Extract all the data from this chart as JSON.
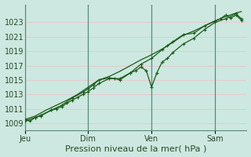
{
  "background_color": "#cce8e0",
  "plot_bg_color": "#cce8e0",
  "grid_color": "#e8c8c8",
  "vline_color": "#5a8a7a",
  "line_color": "#1a5c1a",
  "xlabel": "Pression niveau de la mer( hPa )",
  "yticks": [
    1009,
    1011,
    1013,
    1015,
    1017,
    1019,
    1021,
    1023
  ],
  "ylim": [
    1008.0,
    1025.5
  ],
  "xtick_labels": [
    "Jeu",
    "Dim",
    "Ven",
    "Sam"
  ],
  "xtick_positions": [
    0,
    12,
    24,
    36
  ],
  "xlim": [
    0,
    42
  ],
  "series1_x": [
    0,
    1,
    2,
    3,
    5,
    6,
    7,
    8,
    9,
    10,
    11,
    12,
    13,
    14,
    16,
    18,
    20,
    22,
    24,
    26,
    27,
    28,
    30,
    32,
    34,
    36,
    37,
    38,
    39,
    40,
    41
  ],
  "series1_y": [
    1009.5,
    1009.3,
    1009.8,
    1010.0,
    1010.8,
    1011.0,
    1011.3,
    1011.8,
    1012.2,
    1012.6,
    1013.0,
    1013.4,
    1013.9,
    1014.5,
    1015.2,
    1015.2,
    1016.0,
    1017.2,
    1018.0,
    1019.2,
    1019.8,
    1020.3,
    1021.3,
    1021.5,
    1022.5,
    1023.2,
    1023.5,
    1024.0,
    1023.6,
    1024.0,
    1023.3
  ],
  "series2_x": [
    0,
    2,
    3,
    5,
    7,
    9,
    11,
    12,
    13,
    14,
    16,
    17,
    18,
    20,
    21,
    22,
    23,
    24,
    25,
    26,
    27,
    28,
    30,
    32,
    34,
    36,
    38,
    40,
    41
  ],
  "series2_y": [
    1009.3,
    1009.8,
    1010.1,
    1010.8,
    1011.5,
    1012.5,
    1013.3,
    1013.8,
    1014.3,
    1015.0,
    1015.3,
    1015.2,
    1015.0,
    1016.0,
    1016.3,
    1016.8,
    1016.3,
    1014.0,
    1016.0,
    1017.5,
    1018.0,
    1018.8,
    1020.0,
    1020.8,
    1022.0,
    1023.0,
    1023.5,
    1024.2,
    1023.5
  ],
  "series3_x": [
    0,
    2,
    4,
    6,
    8,
    10,
    12,
    14,
    16,
    18,
    20,
    22,
    24,
    26,
    28,
    30,
    32,
    34,
    36,
    38,
    40,
    41
  ],
  "series3_y": [
    1009.5,
    1010.0,
    1010.8,
    1011.5,
    1012.2,
    1013.0,
    1014.0,
    1015.0,
    1015.5,
    1016.2,
    1017.0,
    1017.8,
    1018.5,
    1019.3,
    1020.2,
    1021.2,
    1021.8,
    1022.5,
    1023.2,
    1023.8,
    1024.3,
    1024.5
  ]
}
